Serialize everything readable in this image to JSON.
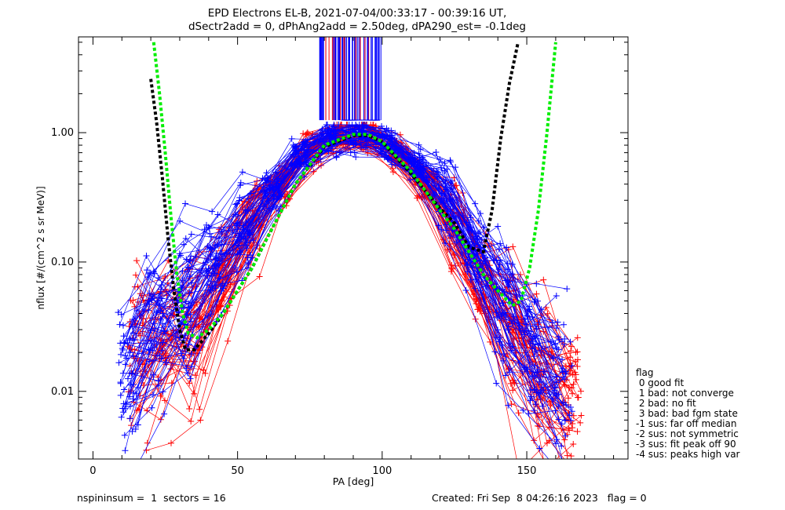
{
  "chart_data": {
    "type": "line",
    "title_line1": "EPD Electrons EL-B, 2021-07-04/00:33:17 - 00:39:16 UT,",
    "title_line2": "dSectr2add = 0, dPhAng2add = 2.50deg, dPA290_est=  -0.1deg",
    "xlabel": "PA [deg]",
    "ylabel": "nflux [#/(cm^2 s sr MeV)]",
    "xlim": [
      -5,
      185
    ],
    "ylim": [
      0.003,
      5.5
    ],
    "yscale": "log",
    "x_ticks": [
      0,
      50,
      100,
      150
    ],
    "x_tick_labels": [
      "0",
      "50",
      "100",
      "150"
    ],
    "y_ticks": [
      0.01,
      0.1,
      1.0
    ],
    "y_tick_labels": [
      "0.01",
      "0.10",
      "1.00"
    ],
    "series": [
      {
        "color": "#ff0000",
        "marker": "+",
        "x": [
          15,
          25,
          35,
          45,
          55,
          65,
          75,
          85,
          95,
          105,
          115,
          125,
          135,
          145,
          155,
          165
        ],
        "y": [
          0.02,
          0.025,
          0.03,
          0.08,
          0.2,
          0.4,
          0.75,
          0.95,
          0.95,
          0.7,
          0.4,
          0.18,
          0.07,
          0.03,
          0.014,
          0.009
        ]
      },
      {
        "color": "#0000ff",
        "marker": "+",
        "x": [
          12,
          22,
          32,
          42,
          52,
          62,
          72,
          82,
          92,
          102,
          112,
          122,
          132,
          142,
          152,
          162
        ],
        "y": [
          0.012,
          0.03,
          0.045,
          0.09,
          0.18,
          0.35,
          0.65,
          0.9,
          0.95,
          0.8,
          0.55,
          0.3,
          0.12,
          0.045,
          0.02,
          0.01
        ]
      },
      {
        "color": "#000000",
        "style": "dashed",
        "x": [
          20,
          22,
          24,
          26,
          28,
          30,
          32,
          35,
          40,
          45,
          50,
          55,
          60,
          70,
          80,
          90,
          95,
          100,
          110,
          120,
          125,
          130,
          135,
          138,
          141,
          144,
          147
        ],
        "y": [
          2.6,
          1.2,
          0.45,
          0.15,
          0.06,
          0.03,
          0.021,
          0.021,
          0.028,
          0.04,
          0.06,
          0.09,
          0.15,
          0.4,
          0.78,
          0.95,
          0.95,
          0.85,
          0.48,
          0.26,
          0.2,
          0.13,
          0.12,
          0.25,
          0.9,
          2.4,
          5.0
        ]
      },
      {
        "color": "#00ee00",
        "style": "dashed",
        "x": [
          21,
          23,
          25,
          27,
          29,
          31,
          33,
          36,
          40,
          45,
          50,
          55,
          60,
          70,
          80,
          90,
          95,
          100,
          110,
          120,
          125,
          130,
          135,
          140,
          145,
          148,
          151,
          154,
          157,
          160
        ],
        "y": [
          5.0,
          2.0,
          0.7,
          0.22,
          0.08,
          0.04,
          0.028,
          0.026,
          0.03,
          0.04,
          0.06,
          0.09,
          0.15,
          0.4,
          0.8,
          0.97,
          0.97,
          0.85,
          0.5,
          0.25,
          0.18,
          0.12,
          0.08,
          0.06,
          0.046,
          0.05,
          0.09,
          0.25,
          1.0,
          5.0
        ]
      }
    ],
    "top_band": {
      "x_range": [
        78,
        100
      ],
      "y_range": [
        1.25,
        5.5
      ],
      "colors": [
        "#0000ff",
        "#ff0000"
      ]
    }
  },
  "legend": {
    "title": "flag",
    "items": [
      " 0 good fit",
      " 1 bad: not converge",
      " 2 bad: no fit",
      " 3 bad: bad fgm state",
      "-1 sus: far off median",
      "-2 sus: not symmetric",
      "-3 sus: fit peak off 90",
      "-4 sus: peaks high var"
    ]
  },
  "footer": {
    "left": "nspininsum =  1  sectors = 16",
    "right": "Created: Fri Sep  8 04:26:16 2023   flag = 0"
  }
}
